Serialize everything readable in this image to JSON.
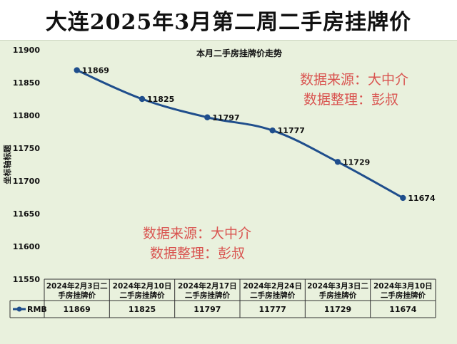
{
  "header": {
    "title": "大连2025年3月第二周二手房挂牌价"
  },
  "watermark": {
    "line1": "数据来源：大中介",
    "line2": "数据整理：彭叔"
  },
  "colors": {
    "line": "#1f4e8c",
    "background": "#e9f1dd",
    "watermark": "#d9534f"
  },
  "chart_data": {
    "type": "line",
    "title": "本月二手房挂牌价走势",
    "ylabel": "坐标轴标题",
    "xlabel": "",
    "ylim": [
      11550,
      11900
    ],
    "yticks": [
      "11900",
      "11850",
      "11800",
      "11750",
      "11700",
      "11650",
      "11600",
      "11550"
    ],
    "categories": [
      "2024年2月3日二手房挂牌价",
      "2024年2月10日二手房挂牌价",
      "2024年2月17日二手房挂牌价",
      "2024年2月24日二手房挂牌价",
      "2024年3月3日二手房挂牌价",
      "2024年3月10日二手房挂牌价"
    ],
    "category_lines": [
      [
        "2024年2月3日二",
        "手房挂牌价"
      ],
      [
        "2024年2月10日",
        "二手房挂牌价"
      ],
      [
        "2024年2月17日",
        "二手房挂牌价"
      ],
      [
        "2024年2月24日",
        "二手房挂牌价"
      ],
      [
        "2024年3月3日二",
        "手房挂牌价"
      ],
      [
        "2024年3月10日",
        "二手房挂牌价"
      ]
    ],
    "series": [
      {
        "name": "RMB",
        "values": [
          11869,
          11825,
          11797,
          11777,
          11729,
          11674
        ],
        "labels": [
          "11869",
          "11825",
          "11797",
          "11777",
          "11729",
          "11674"
        ]
      }
    ],
    "grid": false,
    "legend": "data-table"
  }
}
